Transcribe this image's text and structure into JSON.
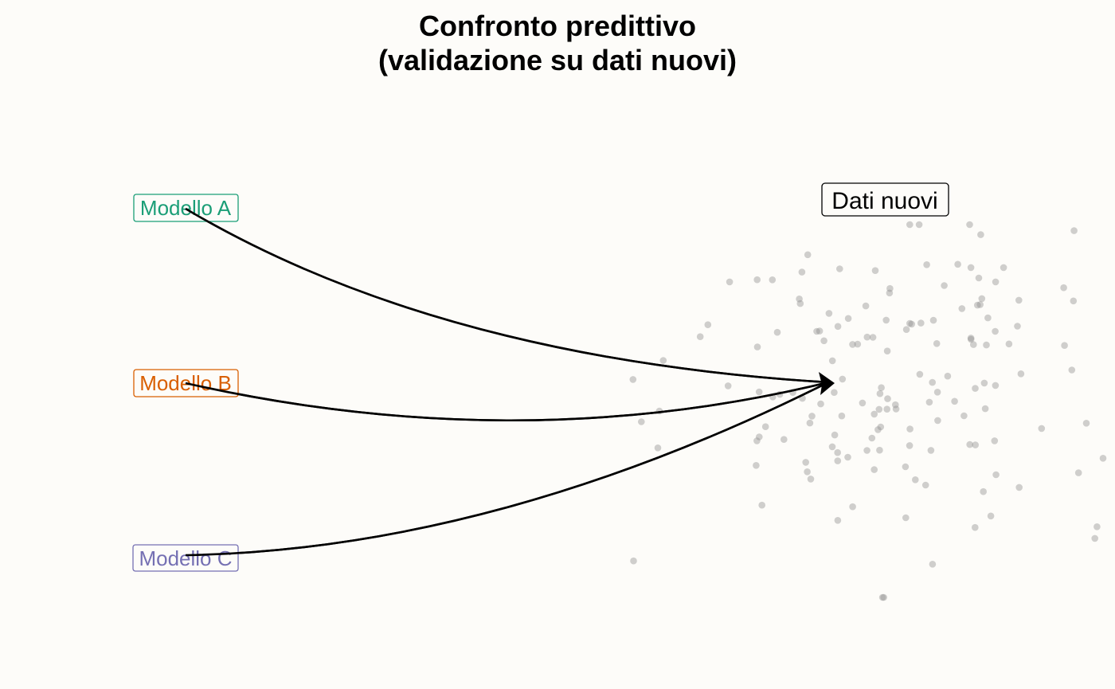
{
  "title": {
    "line1": "Confronto predittivo",
    "line2": "(validazione su dati nuovi)"
  },
  "models": [
    {
      "label": "Modello A",
      "color": "#1b9e77"
    },
    {
      "label": "Modello B",
      "color": "#d95f02"
    },
    {
      "label": "Modello C",
      "color": "#7570b3"
    }
  ],
  "target": {
    "label": "Dati nuovi",
    "color": "#000000"
  },
  "colors": {
    "background": "#fdfcf9",
    "points": "#8e8e8e",
    "arrows": "#000000"
  },
  "cloud_point_count": 150
}
